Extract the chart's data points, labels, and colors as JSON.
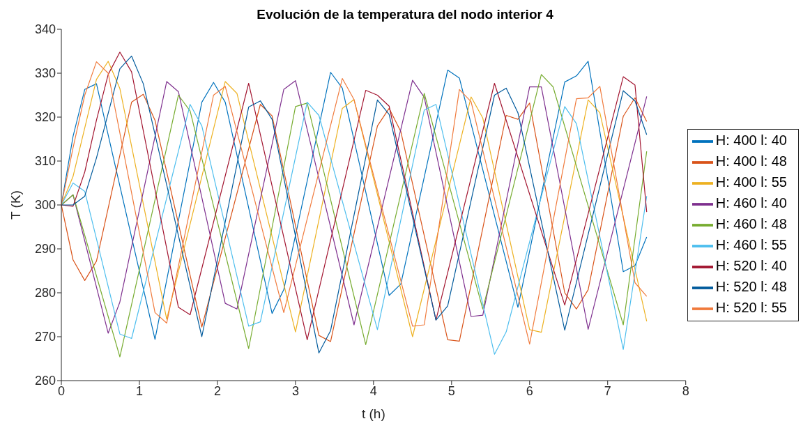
{
  "chart_data": {
    "type": "line",
    "title": "Evolución de la temperatura del nodo interior 4",
    "xlabel": "t (h)",
    "ylabel": "T (K)",
    "xlim": [
      0,
      8
    ],
    "xticks": [
      0,
      1,
      2,
      3,
      4,
      5,
      6,
      7,
      8
    ],
    "ylim": [
      260,
      340
    ],
    "yticks": [
      260,
      270,
      280,
      290,
      300,
      310,
      320,
      330,
      340
    ],
    "legend": "right",
    "marker": "none",
    "line_style": "solid",
    "series": [
      {
        "name": "H: 400 l: 40",
        "color": "#0072bd",
        "x": [
          0,
          0.15,
          0.3,
          0.45,
          1.2,
          1.8,
          1.95,
          2.1,
          2.7,
          2.85,
          3.45,
          3.6,
          4.2,
          4.35,
          4.95,
          5.1,
          5.85,
          6.45,
          6.6,
          6.75,
          7.2,
          7.35,
          7.5
        ],
        "values": [
          300,
          315.6,
          326.3,
          327.6,
          269.4,
          323.4,
          327.9,
          323.4,
          275.3,
          280.7,
          330.2,
          326.6,
          279.4,
          282,
          330.7,
          328.9,
          276.7,
          328,
          329.4,
          332.7,
          284.8,
          286.2,
          292.7
        ]
      },
      {
        "name": "H: 400 l: 48",
        "color": "#d95319",
        "x": [
          0,
          0.15,
          0.3,
          0.45,
          0.9,
          1.05,
          1.2,
          1.8,
          2.55,
          2.7,
          3.3,
          3.45,
          4.05,
          4.2,
          4.35,
          4.95,
          5.1,
          5.7,
          5.85,
          6.0,
          6.45,
          6.6,
          6.75,
          7.2,
          7.35,
          7.5
        ],
        "values": [
          300,
          287.5,
          282.8,
          287.2,
          323.4,
          325.2,
          319.3,
          272.2,
          322.9,
          320.3,
          270.3,
          268.9,
          318,
          322,
          316.7,
          269.3,
          269,
          320.4,
          319.5,
          323.2,
          280,
          276.3,
          280.7,
          320.2,
          324.4,
          319
        ]
      },
      {
        "name": "H: 400 l: 55",
        "color": "#edb120",
        "x": [
          0,
          0.15,
          0.45,
          0.6,
          0.75,
          1.35,
          2.1,
          2.25,
          3.0,
          3.6,
          3.75,
          4.5,
          5.25,
          5.4,
          6.0,
          6.15,
          6.75,
          6.9,
          7.5
        ],
        "values": [
          300,
          306.5,
          328.6,
          332.7,
          326.5,
          274,
          328.1,
          325.4,
          271.1,
          322,
          324,
          270,
          324.6,
          319.8,
          271.6,
          271,
          323.9,
          321,
          273.5
        ]
      },
      {
        "name": "H: 460 l: 40",
        "color": "#7e2f8e",
        "x": [
          0,
          0.15,
          0.6,
          0.75,
          1.35,
          1.5,
          2.1,
          2.25,
          2.85,
          3.0,
          3.75,
          4.5,
          4.65,
          5.25,
          5.4,
          6.0,
          6.15,
          6.75,
          7.5
        ],
        "values": [
          300,
          302.3,
          270.8,
          277.9,
          328.1,
          325.8,
          277.6,
          276.3,
          326.3,
          328.3,
          272.7,
          328.4,
          324.5,
          274.6,
          274.9,
          326.9,
          326.9,
          271.7,
          324.7
        ]
      },
      {
        "name": "H: 460 l: 48",
        "color": "#77ac30",
        "x": [
          0,
          0.15,
          0.75,
          1.5,
          1.65,
          2.4,
          3.0,
          3.15,
          3.9,
          4.65,
          5.4,
          6.15,
          6.3,
          7.2,
          7.5
        ],
        "values": [
          300,
          302.3,
          265.4,
          325,
          321.4,
          267.3,
          322.4,
          323.2,
          268.2,
          325.4,
          276.3,
          329.7,
          326.9,
          272.7,
          312.2
        ]
      },
      {
        "name": "H: 460 l: 55",
        "color": "#4dbeee",
        "x": [
          0,
          0.15,
          0.3,
          0.75,
          0.9,
          1.65,
          1.8,
          2.4,
          2.55,
          3.15,
          3.3,
          4.05,
          4.65,
          4.8,
          5.55,
          5.7,
          6.45,
          6.6,
          7.2,
          7.5
        ],
        "values": [
          300,
          305,
          303.1,
          270.6,
          269.6,
          322.9,
          318,
          272.4,
          273.4,
          323.4,
          320.4,
          271.6,
          321.6,
          322.9,
          266,
          271.1,
          322.4,
          318.5,
          267.1,
          302
        ]
      },
      {
        "name": "H: 520 l: 40",
        "color": "#a2142f",
        "x": [
          0,
          0.15,
          0.3,
          0.45,
          0.6,
          0.75,
          0.9,
          1.5,
          1.65,
          2.4,
          3.15,
          3.9,
          4.05,
          4.2,
          4.8,
          5.55,
          6.45,
          7.2,
          7.35,
          7.5
        ],
        "values": [
          300,
          299.7,
          307.5,
          319.3,
          329.7,
          334.8,
          330.3,
          276.7,
          275,
          327.7,
          269.3,
          326.1,
          325,
          322.5,
          273.8,
          327.7,
          277.2,
          329.2,
          327.3,
          298.4
        ]
      },
      {
        "name": "H: 520 l: 48",
        "color": "#005a9c",
        "x": [
          0,
          0.15,
          0.3,
          0.45,
          0.75,
          0.9,
          1.05,
          1.8,
          2.4,
          2.55,
          2.7,
          3.3,
          3.45,
          4.05,
          4.2,
          4.8,
          4.95,
          5.55,
          5.7,
          5.85,
          6.45,
          7.2,
          7.35,
          7.5
        ],
        "values": [
          300,
          300,
          302,
          310.7,
          331,
          333.9,
          327.6,
          270,
          322.3,
          323.7,
          319.5,
          266.3,
          271.4,
          323.9,
          320.6,
          273.8,
          277,
          325,
          326.6,
          321,
          271.5,
          326,
          323.7,
          316
        ]
      },
      {
        "name": "H: 520 l: 55",
        "color": "#f07a3c",
        "x": [
          0,
          0.15,
          0.3,
          0.45,
          0.6,
          1.2,
          1.35,
          1.95,
          2.1,
          2.85,
          3.6,
          3.75,
          4.5,
          4.65,
          5.1,
          5.25,
          6.0,
          6.6,
          6.75,
          6.9,
          7.35,
          7.5
        ],
        "values": [
          300,
          313,
          325,
          332.6,
          330,
          275.5,
          273.1,
          325,
          327,
          275.5,
          328.8,
          324,
          272.4,
          272.7,
          326.3,
          323.5,
          268.3,
          324.2,
          324.4,
          327,
          282.3,
          279.2
        ]
      }
    ]
  }
}
